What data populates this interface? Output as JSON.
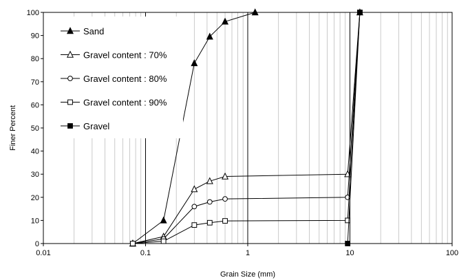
{
  "chart_data": {
    "type": "scatter",
    "title": "",
    "xlabel": "Grain Size (mm)",
    "ylabel": "Finer Percent",
    "x_scale": "log",
    "xlim": [
      0.01,
      100
    ],
    "ylim": [
      0,
      100
    ],
    "x_ticks": [
      "0.01",
      "0.1",
      "1",
      "10",
      "100"
    ],
    "y_ticks": [
      "0",
      "10",
      "20",
      "30",
      "40",
      "50",
      "60",
      "70",
      "80",
      "90",
      "100"
    ],
    "grid": "vertical-log",
    "legend_position": "top-left-inside",
    "series": [
      {
        "name": "Sand",
        "marker": "filled-triangle",
        "points": [
          [
            0.075,
            0
          ],
          [
            0.15,
            10
          ],
          [
            0.3,
            78
          ],
          [
            0.425,
            89.5
          ],
          [
            0.6,
            96
          ],
          [
            1.18,
            100
          ]
        ]
      },
      {
        "name": "Gravel content : 70%",
        "marker": "open-triangle",
        "points": [
          [
            0.075,
            0
          ],
          [
            0.15,
            3
          ],
          [
            0.3,
            23.5
          ],
          [
            0.425,
            27
          ],
          [
            0.6,
            29
          ],
          [
            9.5,
            30
          ],
          [
            12.5,
            100
          ]
        ]
      },
      {
        "name": "Gravel content : 80%",
        "marker": "open-circle",
        "points": [
          [
            0.075,
            0
          ],
          [
            0.15,
            2
          ],
          [
            0.3,
            16
          ],
          [
            0.425,
            18
          ],
          [
            0.6,
            19.3
          ],
          [
            9.5,
            20
          ],
          [
            12.5,
            100
          ]
        ]
      },
      {
        "name": "Gravel content : 90%",
        "marker": "open-square",
        "points": [
          [
            0.075,
            0
          ],
          [
            0.15,
            1
          ],
          [
            0.3,
            8
          ],
          [
            0.425,
            9
          ],
          [
            0.6,
            9.8
          ],
          [
            9.5,
            10
          ],
          [
            12.5,
            100
          ]
        ]
      },
      {
        "name": "Gravel",
        "marker": "filled-square",
        "points": [
          [
            9.5,
            0
          ],
          [
            12.5,
            100
          ]
        ]
      }
    ]
  }
}
